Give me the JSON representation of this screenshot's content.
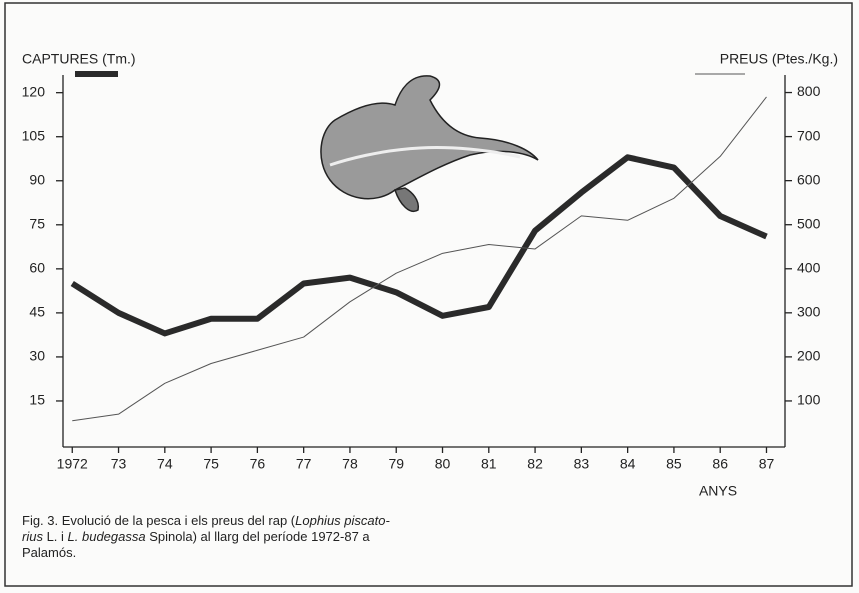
{
  "chart_data": {
    "type": "line",
    "x": [
      1972,
      1973,
      1974,
      1975,
      1976,
      1977,
      1978,
      1979,
      1980,
      1981,
      1982,
      1983,
      1984,
      1985,
      1986,
      1987
    ],
    "xlim": [
      1971.8,
      1987.4
    ],
    "xticks": [
      1972,
      {
        "value": 1973,
        "label": "73"
      },
      {
        "value": 1974,
        "label": "74"
      },
      {
        "value": 1975,
        "label": "75"
      },
      {
        "value": 1976,
        "label": "76"
      },
      {
        "value": 1977,
        "label": "77"
      },
      {
        "value": 1978,
        "label": "78"
      },
      {
        "value": 1979,
        "label": "79"
      },
      {
        "value": 1980,
        "label": "80"
      },
      {
        "value": 1981,
        "label": "81"
      },
      {
        "value": 1982,
        "label": "82"
      },
      {
        "value": 1983,
        "label": "83"
      },
      {
        "value": 1984,
        "label": "84"
      },
      {
        "value": 1985,
        "label": "85"
      },
      {
        "value": 1986,
        "label": "86"
      },
      {
        "value": 1987,
        "label": "87"
      }
    ],
    "xlabel": "ANYS",
    "ylim": [
      0,
      125
    ],
    "yticks": [
      15,
      30,
      45,
      60,
      75,
      90,
      105,
      120
    ],
    "y2lim": [
      0,
      833
    ],
    "y2ticks": [
      100,
      200,
      300,
      400,
      500,
      600,
      700,
      800
    ],
    "series": [
      {
        "name": "CAPTURES (Tm.)",
        "color": "#2a2a2a",
        "width": 6,
        "axis": "y",
        "values": [
          55,
          45,
          38,
          43,
          43,
          55,
          57,
          52,
          44,
          47,
          73,
          86,
          98,
          94.5,
          78,
          71
        ]
      },
      {
        "name": "PREUS (Ptes./Kg.)",
        "color": "#555555",
        "width": 1,
        "axis": "y2",
        "values": [
          55,
          70,
          140,
          185,
          215,
          245,
          325,
          390,
          435,
          455,
          445,
          520,
          510,
          560,
          655,
          790
        ]
      }
    ],
    "caption": [
      {
        "text": "Fig. 3. Evolució de la pesca i els preus del rap ("
      },
      {
        "text": "Lophius piscato-",
        "italic": true
      },
      {
        "text": "rius",
        "italic": true,
        "break": true
      },
      {
        "text": " L. i "
      },
      {
        "text": "L. budegassa",
        "italic": true
      },
      {
        "text": " Spinola) al llarg del període 1972-87 a"
      },
      {
        "text": "Palamós.",
        "break": true
      }
    ]
  }
}
